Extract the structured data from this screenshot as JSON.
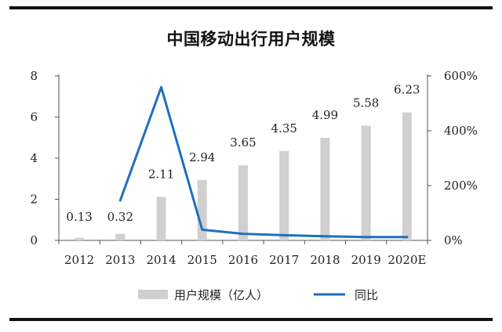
{
  "chart_data": {
    "type": "bar+line",
    "title": "中国移动出行用户规模",
    "categories": [
      "2012",
      "2013",
      "2014",
      "2015",
      "2016",
      "2017",
      "2018",
      "2019",
      "2020E"
    ],
    "series": [
      {
        "name": "用户规模（亿人）",
        "type": "bar",
        "axis": "left",
        "values": [
          0.13,
          0.32,
          2.11,
          2.94,
          3.65,
          4.35,
          4.99,
          5.58,
          6.23
        ],
        "color": "#d0d0d0"
      },
      {
        "name": "同比",
        "type": "line",
        "axis": "right",
        "values": [
          null,
          146,
          559,
          39,
          24,
          19,
          15,
          12,
          12
        ],
        "color": "#1f6fbf"
      }
    ],
    "data_labels": [
      "0.13",
      "0.32",
      "2.11",
      "2.94",
      "3.65",
      "4.35",
      "4.99",
      "5.58",
      "6.23"
    ],
    "y_left": {
      "range": [
        0,
        8
      ],
      "ticks": [
        "0",
        "2",
        "4",
        "6",
        "8"
      ]
    },
    "y_right": {
      "range": [
        0,
        600
      ],
      "ticks": [
        "0%",
        "200%",
        "400%",
        "600%"
      ]
    },
    "grid": false,
    "legend_position": "bottom"
  }
}
